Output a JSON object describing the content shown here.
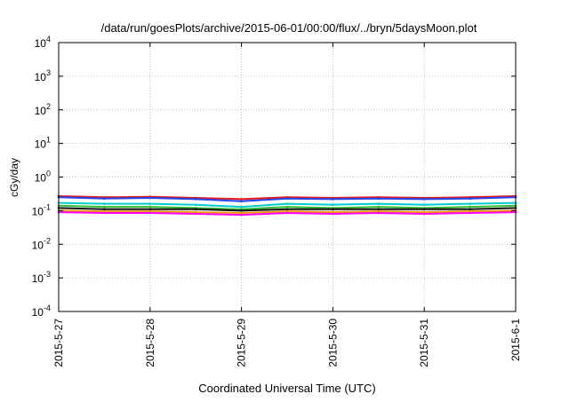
{
  "chart_data": {
    "type": "line",
    "title": "/data/run/goesPlots/archive/2015-06-01/00:00/flux/../bryn/5daysMoon.plot",
    "xlabel": "Coordinated Universal Time (UTC)",
    "ylabel": "cGy/day",
    "x_scale": "time",
    "x_ticks": [
      "2015-5-27",
      "2015-5-28",
      "2015-5-29",
      "2015-5-30",
      "2015-5-31",
      "2015-6-1"
    ],
    "xlim": [
      "2015-05-27",
      "2015-06-01"
    ],
    "y_scale": "log",
    "ylim": [
      0.0001,
      10000
    ],
    "y_ticks": [
      {
        "base": "10",
        "exp": "4"
      },
      {
        "base": "10",
        "exp": "3"
      },
      {
        "base": "10",
        "exp": "2"
      },
      {
        "base": "10",
        "exp": "1"
      },
      {
        "base": "10",
        "exp": "0"
      },
      {
        "base": "10",
        "exp": "-1"
      },
      {
        "base": "10",
        "exp": "-2"
      },
      {
        "base": "10",
        "exp": "-3"
      },
      {
        "base": "10",
        "exp": "-4"
      }
    ],
    "grid": true,
    "x": [
      "2015-05-27",
      "2015-05-27 12:00",
      "2015-05-28",
      "2015-05-28 12:00",
      "2015-05-29",
      "2015-05-29 12:00",
      "2015-05-30",
      "2015-05-30 12:00",
      "2015-05-31",
      "2015-05-31 12:00",
      "2015-06-01"
    ],
    "series": [
      {
        "color": "#e41a1c",
        "values": [
          0.27,
          0.25,
          0.26,
          0.24,
          0.22,
          0.25,
          0.24,
          0.25,
          0.24,
          0.25,
          0.27
        ]
      },
      {
        "color": "#2244ee",
        "values": [
          0.25,
          0.23,
          0.24,
          0.22,
          0.19,
          0.23,
          0.22,
          0.23,
          0.22,
          0.23,
          0.25
        ]
      },
      {
        "color": "#00cccc",
        "values": [
          0.17,
          0.16,
          0.16,
          0.15,
          0.13,
          0.16,
          0.15,
          0.16,
          0.15,
          0.16,
          0.17
        ]
      },
      {
        "color": "#33bb33",
        "values": [
          0.14,
          0.13,
          0.13,
          0.12,
          0.11,
          0.13,
          0.12,
          0.13,
          0.12,
          0.13,
          0.14
        ]
      },
      {
        "color": "#111111",
        "values": [
          0.12,
          0.11,
          0.11,
          0.11,
          0.1,
          0.11,
          0.11,
          0.11,
          0.11,
          0.11,
          0.12
        ]
      },
      {
        "color": "#ee9900",
        "values": [
          0.1,
          0.095,
          0.095,
          0.09,
          0.085,
          0.095,
          0.09,
          0.095,
          0.09,
          0.095,
          0.1
        ]
      },
      {
        "color": "#ff00ff",
        "values": [
          0.09,
          0.085,
          0.085,
          0.08,
          0.075,
          0.085,
          0.08,
          0.085,
          0.08,
          0.085,
          0.09
        ]
      }
    ]
  }
}
